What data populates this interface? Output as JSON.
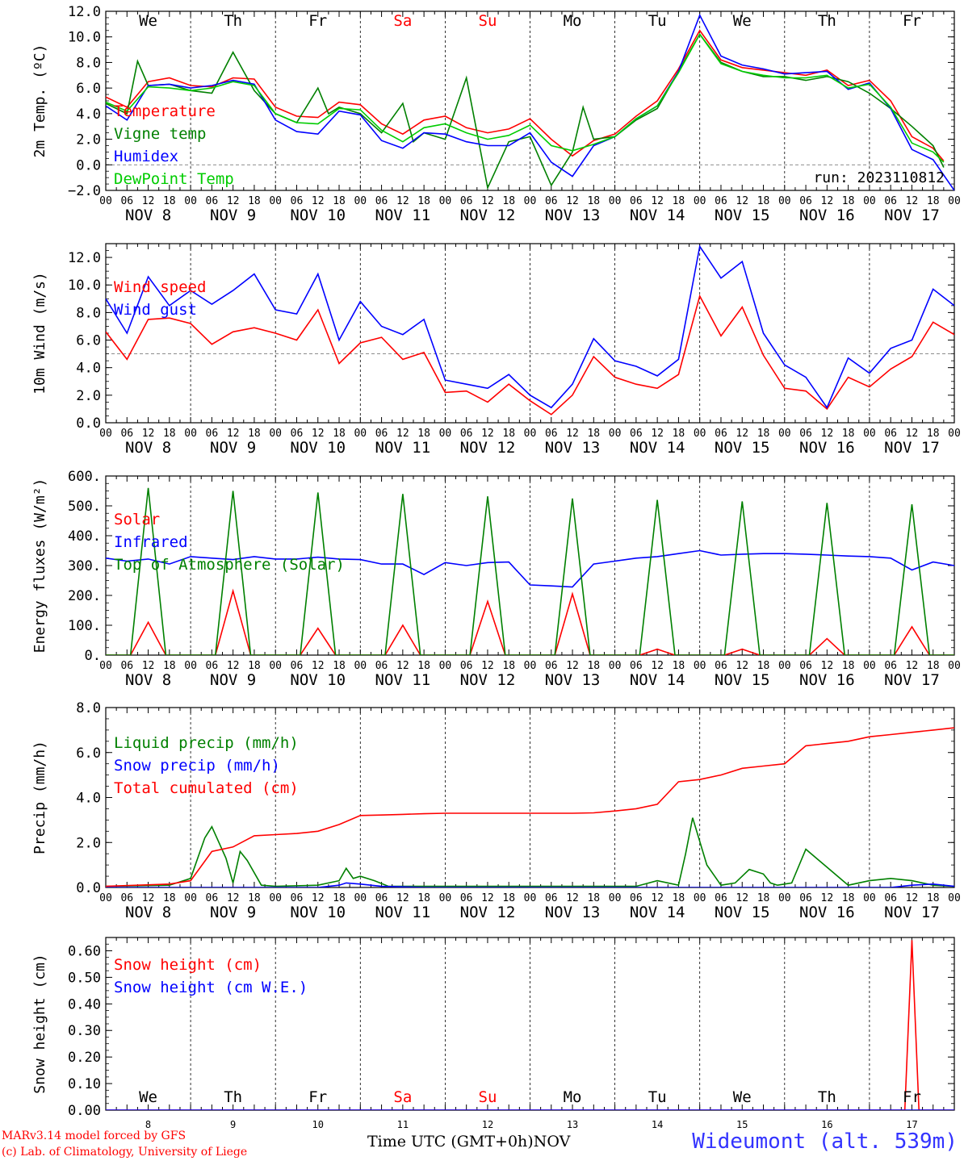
{
  "run_label": "run: 2023110812",
  "credits": {
    "line1": "MARv3.14 model forced by GFS",
    "line2": "(c) Lab. of Climatology, University of Liege"
  },
  "xaxis_title": "Time UTC (GMT+0h)",
  "xaxis_month": "NOV",
  "station": "Wideumont (alt. 539m)",
  "colors": {
    "red": "#ff0000",
    "green": "#008000",
    "blue": "#0000ff",
    "lightgreen": "#00cc00",
    "grey": "#888888",
    "black": "#000000"
  },
  "days": {
    "weekdays": [
      "We",
      "Th",
      "Fr",
      "Sa",
      "Su",
      "Mo",
      "Tu",
      "We",
      "Th",
      "Fr"
    ],
    "weekday_colors": [
      "#000000",
      "#000000",
      "#000000",
      "#ff0000",
      "#ff0000",
      "#000000",
      "#000000",
      "#000000",
      "#000000",
      "#000000"
    ],
    "date_labels": [
      "NOV  8",
      "NOV  9",
      "NOV 10",
      "NOV 11",
      "NOV 12",
      "NOV 13",
      "NOV 14",
      "NOV 15",
      "NOV 16",
      "NOV 17"
    ],
    "day_numbers": [
      "8",
      "9",
      "10",
      "11",
      "12",
      "13",
      "14",
      "15",
      "16",
      "17"
    ],
    "hour_ticks": [
      "00",
      "06",
      "12",
      "18"
    ],
    "hour_tick_end": "00"
  },
  "chart_data": [
    {
      "id": "temperature",
      "type": "line",
      "ylabel": "2m Temp. (ºC)",
      "ylim": [
        -2,
        12
      ],
      "yticks": [
        -2,
        0,
        2,
        4,
        6,
        8,
        10,
        12
      ],
      "ytick_labels": [
        "−2.0",
        "0.0",
        "2.0",
        "4.0",
        "6.0",
        "8.0",
        "10.0",
        "12.0"
      ],
      "ref_line": 0,
      "x_unit": "hours from NOV 8 00 UTC",
      "series": [
        {
          "name": "Temperature",
          "color": "#ff0000",
          "x": [
            0,
            6,
            12,
            18,
            24,
            30,
            36,
            42,
            48,
            54,
            60,
            66,
            72,
            78,
            84,
            90,
            96,
            102,
            108,
            114,
            120,
            126,
            132,
            138,
            144,
            150,
            156,
            162,
            168,
            174,
            180,
            186,
            192,
            198,
            204,
            210,
            216,
            222,
            228,
            234,
            237
          ],
          "y": [
            5.3,
            4.5,
            6.5,
            6.8,
            6.2,
            6.1,
            6.8,
            6.7,
            4.5,
            3.8,
            3.7,
            4.9,
            4.7,
            3.2,
            2.4,
            3.5,
            3.8,
            2.9,
            2.5,
            2.8,
            3.6,
            2.0,
            0.7,
            1.9,
            2.4,
            3.8,
            5.0,
            7.5,
            10.5,
            8.2,
            7.6,
            7.4,
            7.2,
            7.0,
            7.4,
            6.2,
            6.6,
            5.0,
            2.2,
            1.3,
            0.3
          ]
        },
        {
          "name": "Vigne temp",
          "color": "#008000",
          "x": [
            0,
            6,
            9,
            12,
            18,
            24,
            30,
            36,
            42,
            48,
            54,
            60,
            63,
            66,
            72,
            78,
            84,
            87,
            90,
            96,
            102,
            108,
            114,
            120,
            126,
            132,
            135,
            138,
            144,
            150,
            156,
            162,
            168,
            174,
            180,
            186,
            192,
            198,
            204,
            210,
            216,
            222,
            228,
            234,
            237
          ],
          "y": [
            4.8,
            4.0,
            8.1,
            6.2,
            6.3,
            5.8,
            5.6,
            8.8,
            5.8,
            4.0,
            3.3,
            6.0,
            4.0,
            4.5,
            4.0,
            2.5,
            4.8,
            1.8,
            2.5,
            2.0,
            6.8,
            -1.8,
            1.8,
            2.2,
            -1.6,
            1.0,
            4.5,
            2.0,
            2.2,
            3.5,
            4.4,
            7.3,
            10.2,
            8.0,
            7.3,
            6.9,
            6.9,
            6.6,
            6.9,
            6.5,
            5.6,
            4.4,
            3.0,
            1.5,
            -0.2
          ]
        },
        {
          "name": "Humidex",
          "color": "#0000ff",
          "x": [
            0,
            6,
            12,
            18,
            24,
            30,
            36,
            42,
            48,
            54,
            60,
            66,
            72,
            78,
            84,
            90,
            96,
            102,
            108,
            114,
            120,
            126,
            132,
            138,
            144,
            150,
            156,
            162,
            168,
            174,
            180,
            186,
            192,
            198,
            204,
            210,
            216,
            222,
            228,
            234,
            240
          ],
          "y": [
            4.6,
            3.5,
            6.2,
            6.3,
            6.0,
            6.2,
            6.6,
            6.3,
            3.5,
            2.6,
            2.4,
            4.2,
            3.9,
            1.9,
            1.3,
            2.5,
            2.4,
            1.8,
            1.5,
            1.5,
            2.5,
            0.2,
            -0.9,
            1.5,
            2.2,
            3.6,
            4.6,
            7.3,
            11.7,
            8.5,
            7.8,
            7.5,
            7.1,
            7.2,
            7.3,
            5.9,
            6.4,
            4.4,
            1.2,
            0.4,
            -2.0
          ]
        },
        {
          "name": "DewPoint Temp",
          "color": "#00cc00",
          "x": [
            0,
            6,
            12,
            18,
            24,
            30,
            36,
            42,
            48,
            54,
            60,
            66,
            72,
            78,
            84,
            90,
            96,
            102,
            108,
            114,
            120,
            126,
            132,
            138,
            144,
            150,
            156,
            162,
            168,
            174,
            180,
            186,
            192,
            198,
            204,
            210,
            216,
            222,
            228,
            234,
            237
          ],
          "y": [
            4.9,
            4.2,
            6.1,
            6.0,
            5.8,
            6.0,
            6.5,
            6.2,
            4.0,
            3.3,
            3.2,
            4.4,
            4.3,
            2.7,
            1.8,
            2.9,
            3.2,
            2.5,
            2.0,
            2.3,
            3.1,
            1.5,
            1.1,
            1.6,
            2.2,
            3.6,
            4.6,
            7.2,
            10.2,
            7.9,
            7.3,
            7.0,
            6.8,
            6.8,
            7.0,
            6.0,
            6.3,
            4.5,
            1.7,
            1.0,
            0.2
          ]
        }
      ]
    },
    {
      "id": "wind",
      "type": "line",
      "ylabel": "10m Wind (m/s)",
      "ylim": [
        0,
        13
      ],
      "yticks": [
        0,
        2,
        4,
        6,
        8,
        10,
        12
      ],
      "ytick_labels": [
        "0.0",
        "2.0",
        "4.0",
        "6.0",
        "8.0",
        "10.0",
        "12.0"
      ],
      "ref_line": 5,
      "series": [
        {
          "name": "Wind speed",
          "color": "#ff0000",
          "x": [
            0,
            6,
            12,
            18,
            24,
            30,
            36,
            42,
            48,
            54,
            60,
            66,
            72,
            78,
            84,
            90,
            96,
            102,
            108,
            114,
            120,
            126,
            132,
            138,
            144,
            150,
            156,
            162,
            168,
            174,
            180,
            186,
            192,
            198,
            204,
            210,
            216,
            222,
            228,
            234,
            240
          ],
          "y": [
            6.6,
            4.6,
            7.5,
            7.6,
            7.2,
            5.7,
            6.6,
            6.9,
            6.5,
            6.0,
            8.2,
            4.3,
            5.8,
            6.2,
            4.6,
            5.1,
            2.2,
            2.3,
            1.5,
            2.8,
            1.6,
            0.6,
            2.0,
            4.8,
            3.3,
            2.8,
            2.5,
            3.5,
            9.2,
            6.3,
            8.4,
            4.9,
            2.5,
            2.3,
            1.0,
            3.3,
            2.6,
            3.9,
            4.8,
            7.3,
            6.4
          ]
        },
        {
          "name": "Wind gust",
          "color": "#0000ff",
          "x": [
            0,
            6,
            12,
            18,
            24,
            30,
            36,
            42,
            48,
            54,
            60,
            66,
            72,
            78,
            84,
            90,
            96,
            102,
            108,
            114,
            120,
            126,
            132,
            138,
            144,
            150,
            156,
            162,
            168,
            174,
            180,
            186,
            192,
            198,
            204,
            210,
            216,
            222,
            228,
            234,
            240
          ],
          "y": [
            9.0,
            6.5,
            10.6,
            8.5,
            9.6,
            8.6,
            9.6,
            10.8,
            8.2,
            7.9,
            10.8,
            6.0,
            8.8,
            7.0,
            6.4,
            7.5,
            3.1,
            2.8,
            2.5,
            3.5,
            2.0,
            1.1,
            2.8,
            6.1,
            4.5,
            4.1,
            3.4,
            4.6,
            12.8,
            10.5,
            11.7,
            6.5,
            4.2,
            3.3,
            1.1,
            4.7,
            3.6,
            5.4,
            6.0,
            9.7,
            8.5
          ]
        }
      ]
    },
    {
      "id": "energy",
      "type": "line",
      "ylabel": "Energy fluxes (W/m²)",
      "ylim": [
        0,
        600
      ],
      "yticks": [
        0,
        100,
        200,
        300,
        400,
        500,
        600
      ],
      "ytick_labels": [
        "0.",
        "100.",
        "200.",
        "300.",
        "400.",
        "500.",
        "600."
      ],
      "series": [
        {
          "name": "Solar",
          "color": "#ff0000",
          "day_peaks": [
            110,
            215,
            90,
            100,
            180,
            205,
            20,
            20,
            55,
            95
          ]
        },
        {
          "name": "Infrared",
          "color": "#0000ff",
          "x": [
            0,
            6,
            12,
            18,
            24,
            30,
            36,
            42,
            48,
            54,
            60,
            66,
            72,
            78,
            84,
            90,
            96,
            102,
            108,
            114,
            120,
            126,
            132,
            138,
            144,
            150,
            156,
            162,
            168,
            174,
            180,
            186,
            192,
            198,
            204,
            210,
            216,
            222,
            228,
            234,
            240
          ],
          "y": [
            325,
            315,
            322,
            305,
            330,
            325,
            320,
            330,
            322,
            322,
            328,
            322,
            320,
            305,
            305,
            270,
            310,
            300,
            310,
            312,
            235,
            232,
            228,
            305,
            315,
            325,
            330,
            340,
            350,
            335,
            338,
            340,
            340,
            338,
            335,
            332,
            330,
            325,
            285,
            312,
            300
          ]
        },
        {
          "name": "Top of Atmosphere (Solar)",
          "color": "#008000",
          "day_peaks": [
            560,
            550,
            545,
            540,
            532,
            525,
            520,
            515,
            510,
            505
          ]
        }
      ]
    },
    {
      "id": "precip",
      "type": "line",
      "ylabel": "Precip (mm/h)",
      "ylim": [
        0,
        8
      ],
      "yticks": [
        0,
        2,
        4,
        6,
        8
      ],
      "ytick_labels": [
        "0.0",
        "2.0",
        "4.0",
        "6.0",
        "8.0"
      ],
      "series": [
        {
          "name": "Liquid precip (mm/h)",
          "color": "#008000",
          "x": [
            0,
            18,
            24,
            28,
            30,
            34,
            36,
            38,
            40,
            44,
            48,
            60,
            66,
            68,
            70,
            72,
            76,
            80,
            90,
            120,
            150,
            156,
            162,
            164,
            166,
            170,
            174,
            178,
            182,
            186,
            188,
            190,
            194,
            198,
            210,
            216,
            222,
            228,
            234,
            240
          ],
          "y": [
            0.05,
            0.1,
            0.4,
            2.2,
            2.7,
            1.3,
            0.2,
            1.6,
            1.2,
            0.1,
            0.05,
            0.1,
            0.3,
            0.85,
            0.4,
            0.5,
            0.3,
            0.05,
            0.05,
            0.05,
            0.05,
            0.3,
            0.1,
            1.5,
            3.1,
            1.0,
            0.1,
            0.2,
            0.8,
            0.6,
            0.2,
            0.1,
            0.2,
            1.7,
            0.1,
            0.3,
            0.4,
            0.3,
            0.1,
            0.05
          ]
        },
        {
          "name": "Snow precip (mm/h)",
          "color": "#0000ff",
          "x": [
            0,
            60,
            66,
            68,
            72,
            78,
            90,
            222,
            228,
            234,
            240
          ],
          "y": [
            0,
            0,
            0.1,
            0.2,
            0.15,
            0.05,
            0,
            0,
            0.1,
            0.15,
            0.05
          ]
        },
        {
          "name": "Total cumulated (cm)",
          "color": "#ff0000",
          "x": [
            0,
            18,
            24,
            30,
            36,
            42,
            48,
            54,
            60,
            66,
            72,
            78,
            84,
            90,
            96,
            102,
            108,
            114,
            120,
            126,
            132,
            138,
            144,
            150,
            156,
            162,
            168,
            174,
            180,
            186,
            192,
            198,
            204,
            210,
            216,
            222,
            228,
            234,
            240
          ],
          "y": [
            0.05,
            0.15,
            0.3,
            1.6,
            1.8,
            2.3,
            2.35,
            2.4,
            2.5,
            2.8,
            3.2,
            3.22,
            3.25,
            3.28,
            3.3,
            3.3,
            3.3,
            3.3,
            3.3,
            3.3,
            3.3,
            3.32,
            3.4,
            3.5,
            3.7,
            4.7,
            4.8,
            5.0,
            5.3,
            5.4,
            5.5,
            6.3,
            6.4,
            6.5,
            6.7,
            6.8,
            6.9,
            7.0,
            7.1
          ]
        }
      ]
    },
    {
      "id": "snow",
      "type": "line",
      "ylabel": "Snow height (cm)",
      "ylim": [
        0,
        0.65
      ],
      "yticks": [
        0,
        0.1,
        0.2,
        0.3,
        0.4,
        0.5,
        0.6
      ],
      "ytick_labels": [
        "0.00",
        "0.10",
        "0.20",
        "0.30",
        "0.40",
        "0.50",
        "0.60"
      ],
      "series": [
        {
          "name": "Snow height (cm)",
          "color": "#ff0000",
          "x": [
            0,
            226,
            228,
            230,
            240
          ],
          "y": [
            0,
            0,
            0.64,
            0,
            0
          ]
        },
        {
          "name": "Snow height (cm W.E.)",
          "color": "#0000ff",
          "x": [
            0,
            240
          ],
          "y": [
            0,
            0
          ]
        }
      ]
    }
  ]
}
